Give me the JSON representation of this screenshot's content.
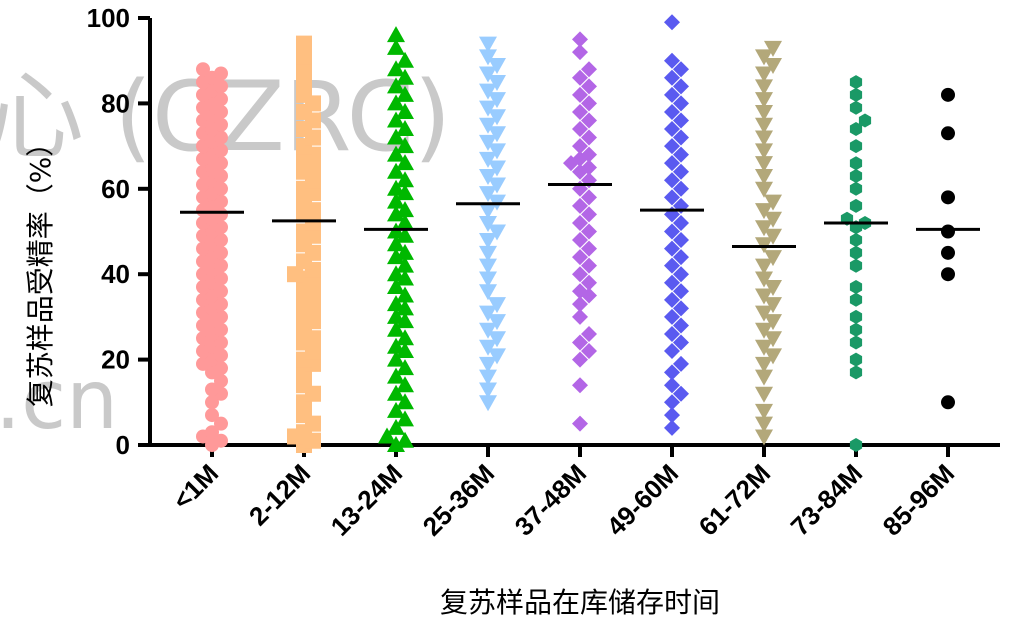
{
  "chart_data": {
    "type": "scatter",
    "subtype": "column scatter (dot plot) with mean lines",
    "title": "",
    "xlabel": "复苏样品在库储存时间",
    "ylabel": "复苏样品受精率（%）",
    "ylim": [
      0,
      100
    ],
    "yticks": [
      0,
      20,
      40,
      60,
      80,
      100
    ],
    "grid": false,
    "legend": "none",
    "categories": [
      "<1M",
      "2-12M",
      "13-24M",
      "25-36M",
      "37-48M",
      "49-60M",
      "61-72M",
      "73-84M",
      "85-96M"
    ],
    "series": [
      {
        "category": "<1M",
        "color": "#ff9999",
        "marker": "circle",
        "mean": 54.5,
        "values": [
          0,
          1,
          2,
          3,
          5,
          7,
          10,
          12,
          13,
          15,
          17,
          18,
          19,
          20,
          21,
          22,
          23,
          24,
          25,
          26,
          27,
          28,
          29,
          30,
          31,
          32,
          33,
          34,
          35,
          36,
          37,
          38,
          39,
          40,
          41,
          42,
          43,
          44,
          45,
          46,
          47,
          48,
          49,
          50,
          51,
          52,
          53,
          54,
          55,
          56,
          57,
          58,
          59,
          60,
          61,
          62,
          63,
          64,
          65,
          66,
          67,
          68,
          69,
          70,
          71,
          72,
          73,
          74,
          75,
          76,
          77,
          78,
          79,
          80,
          81,
          82,
          83,
          84,
          85,
          86,
          87,
          88
        ]
      },
      {
        "category": "2-12M",
        "color": "#ffbf80",
        "marker": "square",
        "mean": 52.5,
        "values": [
          0,
          1,
          2,
          3,
          5,
          7,
          10,
          12,
          14,
          17,
          19,
          20,
          22,
          24,
          25,
          27,
          29,
          30,
          32,
          33,
          35,
          36,
          38,
          39,
          40,
          41,
          43,
          45,
          47,
          49,
          50,
          52,
          54,
          55,
          57,
          59,
          60,
          62,
          64,
          65,
          67,
          68,
          70,
          72,
          74,
          76,
          78,
          80,
          82,
          85,
          88,
          91,
          94
        ]
      },
      {
        "category": "13-24M",
        "color": "#00b800",
        "marker": "triangle-up",
        "mean": 50.5,
        "values": [
          0,
          1,
          2,
          4,
          6,
          8,
          10,
          12,
          14,
          16,
          18,
          20,
          22,
          23,
          25,
          27,
          29,
          30,
          32,
          33,
          35,
          37,
          39,
          40,
          42,
          44,
          45,
          47,
          49,
          50,
          52,
          54,
          55,
          57,
          59,
          60,
          62,
          64,
          66,
          68,
          70,
          72,
          74,
          76,
          78,
          80,
          82,
          84,
          86,
          88,
          90,
          93,
          96
        ]
      },
      {
        "category": "25-36M",
        "color": "#99ccff",
        "marker": "triangle-down",
        "mean": 56.5,
        "values": [
          10,
          13,
          16,
          19,
          21,
          23,
          25,
          27,
          29,
          31,
          33,
          36,
          39,
          42,
          45,
          48,
          50,
          52,
          55,
          57,
          59,
          61,
          63,
          65,
          67,
          69,
          71,
          73,
          75,
          77,
          79,
          81,
          83,
          85,
          87,
          89,
          91,
          94
        ]
      },
      {
        "category": "37-48M",
        "color": "#b366e6",
        "marker": "diamond",
        "mean": 61.0,
        "values": [
          5,
          14,
          20,
          22,
          24,
          26,
          30,
          33,
          35,
          36,
          38,
          40,
          42,
          44,
          46,
          48,
          50,
          52,
          54,
          56,
          58,
          60,
          62,
          64,
          65,
          66,
          67,
          68,
          70,
          72,
          74,
          76,
          78,
          80,
          82,
          84,
          86,
          88,
          92,
          95
        ]
      },
      {
        "category": "49-60M",
        "color": "#5a5af0",
        "marker": "diamond",
        "mean": 55.0,
        "values": [
          4,
          7,
          10,
          12,
          14,
          17,
          19,
          22,
          24,
          26,
          28,
          30,
          32,
          34,
          36,
          38,
          40,
          42,
          44,
          46,
          48,
          50,
          52,
          54,
          56,
          58,
          60,
          62,
          64,
          66,
          68,
          70,
          72,
          74,
          76,
          78,
          80,
          82,
          84,
          86,
          88,
          90,
          99
        ]
      },
      {
        "category": "61-72M",
        "color": "#b3a87a",
        "marker": "triangle-down",
        "mean": 46.5,
        "values": [
          2,
          5,
          8,
          12,
          16,
          19,
          21,
          23,
          25,
          27,
          29,
          31,
          33,
          35,
          37,
          39,
          42,
          44,
          47,
          49,
          51,
          53,
          55,
          57,
          60,
          63,
          66,
          69,
          72,
          75,
          78,
          81,
          84,
          87,
          89,
          91,
          93
        ]
      },
      {
        "category": "73-84M",
        "color": "#1a9966",
        "marker": "hexagon",
        "mean": 52.0,
        "values": [
          0,
          17,
          20,
          24,
          27,
          30,
          34,
          37,
          42,
          45,
          48,
          51,
          52,
          53,
          56,
          60,
          63,
          66,
          70,
          74,
          76,
          79,
          82,
          85
        ]
      },
      {
        "category": "85-96M",
        "color": "#000000",
        "marker": "circle",
        "mean": 50.5,
        "values": [
          10,
          40,
          45,
          50,
          58,
          73,
          82
        ]
      }
    ]
  },
  "watermark": {
    "line1": "心 (CZRC)",
    "line2": ".cn"
  }
}
